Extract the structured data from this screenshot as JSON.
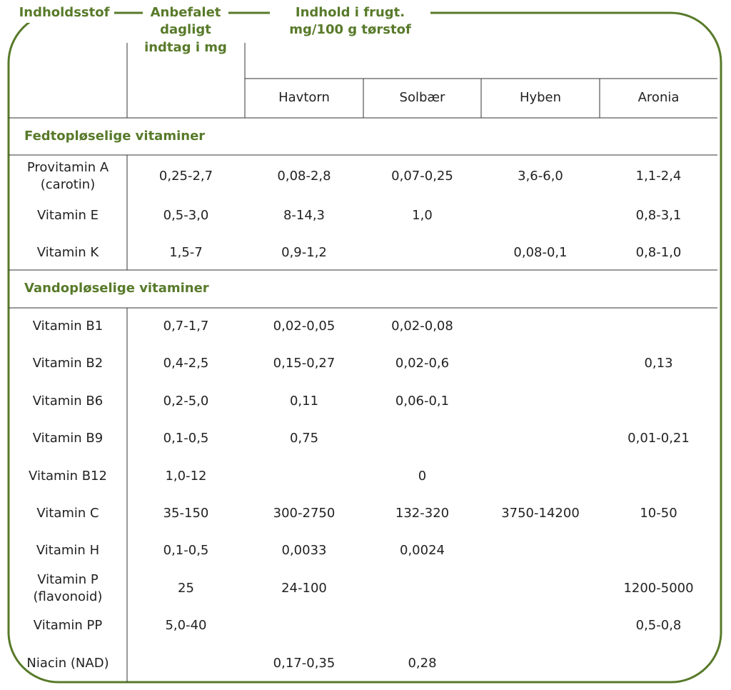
{
  "header": {
    "columns": [
      "Indholdsstof",
      "Anbefalet dagligt indtag i mg",
      "Indhold i frugt. mg/100 g tørstof"
    ],
    "fruits": [
      "Havtorn",
      "Solbær",
      "Hyben",
      "Aronia"
    ]
  },
  "sections": [
    {
      "title": "Fedtopløselige vitaminer",
      "rows": [
        [
          "Provitamin A (carotin)",
          "0,25-2,7",
          "0,08-2,8",
          "0,07-0,25",
          "3,6-6,0",
          "1,1-2,4"
        ],
        [
          "Vitamin E",
          "0,5-3,0",
          "8-14,3",
          "1,0",
          null,
          "0,8-3,1"
        ],
        [
          "Vitamin K",
          "1,5-7",
          "0,9-1,2",
          null,
          "0,08-0,1",
          "0,8-1,0"
        ]
      ]
    },
    {
      "title": "Vandopløselige vitaminer",
      "rows": [
        [
          "Vitamin B1",
          "0,7-1,7",
          "0,02-0,05",
          "0,02-0,08",
          null,
          null
        ],
        [
          "Vitamin B2",
          "0,4-2,5",
          "0,15-0,27",
          "0,02-0,6",
          null,
          "0,13"
        ],
        [
          "Vitamin B6",
          "0,2-5,0",
          "0,11",
          "0,06-0,1",
          null,
          null
        ],
        [
          "Vitamin B9",
          "0,1-0,5",
          "0,75",
          null,
          null,
          "0,01-0,21"
        ],
        [
          "Vitamin B12",
          "1,0-12",
          null,
          "0",
          null,
          null
        ],
        [
          "Vitamin C",
          "35-150",
          "300-2750",
          "132-320",
          "3750-14200",
          "10-50"
        ],
        [
          "Vitamin H",
          "0,1-0,5",
          "0,0033",
          "0,0024",
          null,
          null
        ],
        [
          "Vitamin P (flavonoid)",
          "25",
          "24-100",
          null,
          null,
          "1200-5000"
        ],
        [
          "Vitamin PP",
          "5,0-40",
          null,
          null,
          null,
          "0,5-0,8"
        ],
        [
          "Niacin (NAD)",
          null,
          "0,17-0,35",
          "0,28",
          null,
          null
        ]
      ]
    }
  ]
}
